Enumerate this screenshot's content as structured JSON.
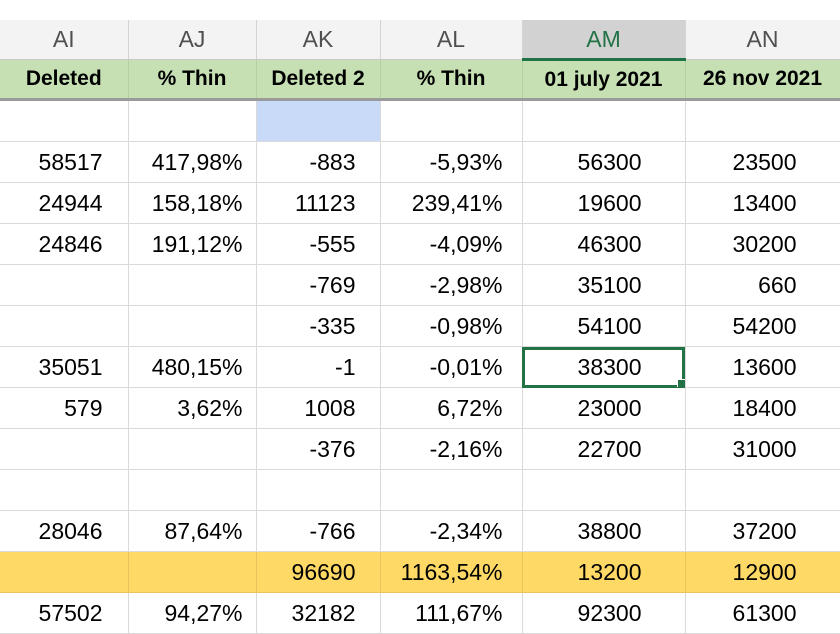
{
  "columns": [
    "AI",
    "AJ",
    "AK",
    "AL",
    "AM",
    "AN"
  ],
  "active_column": "AM",
  "headers": [
    "Deleted",
    "% Thin",
    "Deleted 2",
    "% Thin",
    "01 july 2021",
    "26 nov 2021"
  ],
  "rows": [
    [
      "",
      "",
      "",
      "",
      "",
      ""
    ],
    [
      "58517",
      "417,98%",
      "-883",
      "-5,93%",
      "56300",
      "23500"
    ],
    [
      "24944",
      "158,18%",
      "11123",
      "239,41%",
      "19600",
      "13400"
    ],
    [
      "24846",
      "191,12%",
      "-555",
      "-4,09%",
      "46300",
      "30200"
    ],
    [
      "",
      "",
      "-769",
      "-2,98%",
      "35100",
      "660"
    ],
    [
      "",
      "",
      "-335",
      "-0,98%",
      "54100",
      "54200"
    ],
    [
      "35051",
      "480,15%",
      "-1",
      "-0,01%",
      "38300",
      "13600"
    ],
    [
      "579",
      "3,62%",
      "1008",
      "6,72%",
      "23000",
      "18400"
    ],
    [
      "",
      "",
      "-376",
      "-2,16%",
      "22700",
      "31000"
    ],
    [
      "",
      "",
      "",
      "",
      "",
      ""
    ],
    [
      "28046",
      "87,64%",
      "-766",
      "-2,34%",
      "38800",
      "37200"
    ],
    [
      "",
      "",
      "96690",
      "1163,54%",
      "13200",
      "12900"
    ],
    [
      "57502",
      "94,27%",
      "32182",
      "111,67%",
      "92300",
      "61300"
    ]
  ],
  "colors": {
    "header_fill": "#c6e0b4",
    "highlight_row": "#ffd966",
    "blue_cell": "#c9daf8",
    "selection": "#217346"
  }
}
